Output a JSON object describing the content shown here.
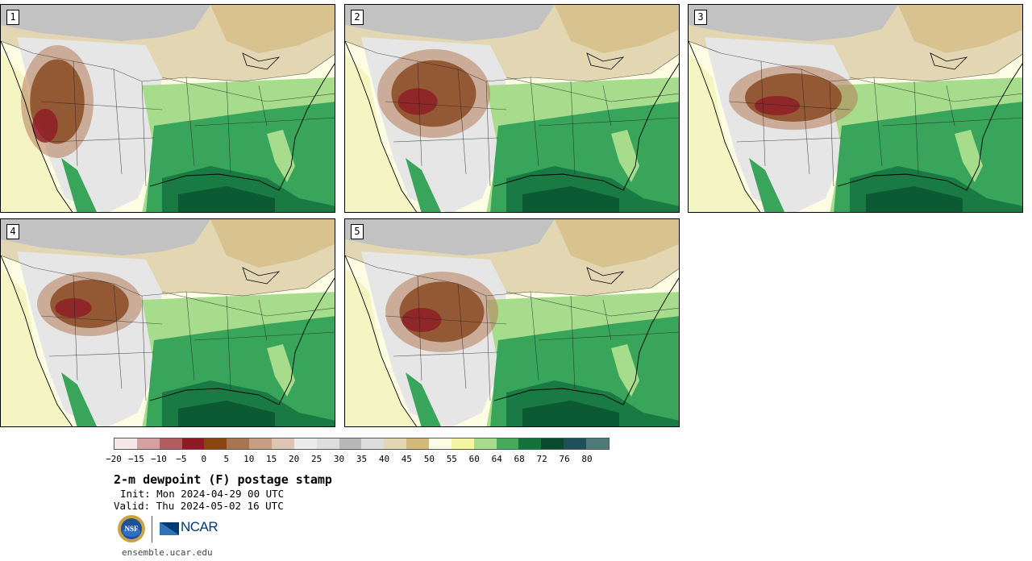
{
  "panels": [
    {
      "label": "1"
    },
    {
      "label": "2"
    },
    {
      "label": "3"
    },
    {
      "label": "4"
    },
    {
      "label": "5"
    }
  ],
  "map_colors": {
    "ocean_warm": "#0b5a33",
    "ocean_green": "#1a7a44",
    "gulf_green": "#39a55a",
    "light_green": "#a6dc8c",
    "pale_yellow": "#f5f5c4",
    "cream": "#fdfde3",
    "tan": "#d8c28f",
    "light_tan": "#e2d6b3",
    "light_gray": "#e6e6e6",
    "gray": "#c2c2c2",
    "brown": "#8a4a22",
    "dark_red": "#8e1a26"
  },
  "colorbar": {
    "colors": [
      "#f5e8e8",
      "#d4a0a0",
      "#b25d5f",
      "#8e1a26",
      "#8b4513",
      "#a87452",
      "#c59e83",
      "#dec4b2",
      "#ececec",
      "#dedede",
      "#b8b8b8",
      "#dcdcdc",
      "#e2d6b3",
      "#d2b87b",
      "#fdfde3",
      "#f5f5a6",
      "#a6dc8c",
      "#46aa5a",
      "#13733a",
      "#0a4a2c",
      "#1e4f5a",
      "#4f7a7a"
    ],
    "tick_labels": [
      "−20",
      "−15",
      "−10",
      "−5",
      "0",
      "5",
      "10",
      "15",
      "20",
      "25",
      "30",
      "35",
      "40",
      "45",
      "50",
      "55",
      "60",
      "64",
      "68",
      "72",
      "76",
      "80"
    ]
  },
  "title": "2-m dewpoint (F) postage stamp",
  "init_text": "Init: Mon 2024-04-29 00 UTC",
  "valid_text": "Valid: Thu 2024-05-02 16 UTC",
  "logos": {
    "nsf": "NSF",
    "ncar": "NCAR"
  },
  "website": "ensemble.ucar.edu"
}
